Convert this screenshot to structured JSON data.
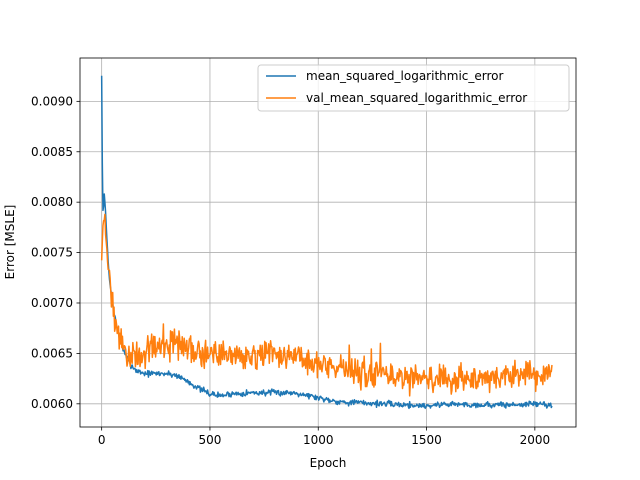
{
  "chart_data": {
    "type": "line",
    "title": "",
    "xlabel": "Epoch",
    "ylabel": "Error [MSLE]",
    "xlim": [
      -100,
      2190
    ],
    "ylim": [
      0.00577,
      0.00943
    ],
    "grid": true,
    "legend_position": "top-right",
    "x_ticks": [
      0,
      500,
      1000,
      1500,
      2000
    ],
    "x_tick_labels": [
      "0",
      "500",
      "1000",
      "1500",
      "2000"
    ],
    "y_ticks": [
      0.006,
      0.0065,
      0.007,
      0.0075,
      0.008,
      0.0085,
      0.009
    ],
    "y_tick_labels": [
      "0.0060",
      "0.0065",
      "0.0070",
      "0.0075",
      "0.0080",
      "0.0085",
      "0.0090"
    ],
    "series": [
      {
        "name": "mean_squared_logarithmic_error",
        "color": "#1f77b4",
        "noise": 1.5e-05,
        "x": [
          0,
          2,
          5,
          8,
          12,
          18,
          25,
          35,
          50,
          70,
          90,
          110,
          130,
          160,
          200,
          250,
          300,
          350,
          400,
          450,
          500,
          550,
          600,
          700,
          800,
          900,
          1000,
          1100,
          1200,
          1300,
          1400,
          1500,
          1600,
          1700,
          1800,
          1900,
          2000,
          2080
        ],
        "y": [
          0.00925,
          0.0086,
          0.00795,
          0.0079,
          0.00808,
          0.0079,
          0.0076,
          0.00725,
          0.007,
          0.00675,
          0.0066,
          0.00648,
          0.0064,
          0.00633,
          0.0063,
          0.0063,
          0.0063,
          0.00628,
          0.00622,
          0.00615,
          0.0061,
          0.00608,
          0.0061,
          0.00611,
          0.00611,
          0.00611,
          0.00606,
          0.00602,
          0.00601,
          0.006,
          0.00599,
          0.00598,
          0.006,
          0.00599,
          0.00599,
          0.00599,
          0.006,
          0.00599
        ]
      },
      {
        "name": "val_mean_squared_logarithmic_error",
        "color": "#ff7f0e",
        "noise": 7e-05,
        "x": [
          0,
          5,
          10,
          15,
          20,
          30,
          40,
          60,
          80,
          100,
          130,
          160,
          200,
          250,
          300,
          350,
          400,
          500,
          600,
          700,
          800,
          900,
          1000,
          1100,
          1200,
          1300,
          1400,
          1500,
          1600,
          1700,
          1800,
          1900,
          2000,
          2080
        ],
        "y": [
          0.00745,
          0.0077,
          0.00785,
          0.00772,
          0.00755,
          0.0074,
          0.0072,
          0.0069,
          0.00665,
          0.0065,
          0.00645,
          0.00648,
          0.00652,
          0.00655,
          0.00657,
          0.0066,
          0.00655,
          0.0065,
          0.0065,
          0.0065,
          0.00648,
          0.00645,
          0.0064,
          0.00635,
          0.0063,
          0.00628,
          0.00625,
          0.00625,
          0.00625,
          0.00625,
          0.00627,
          0.00627,
          0.0063,
          0.00633
        ]
      }
    ]
  }
}
